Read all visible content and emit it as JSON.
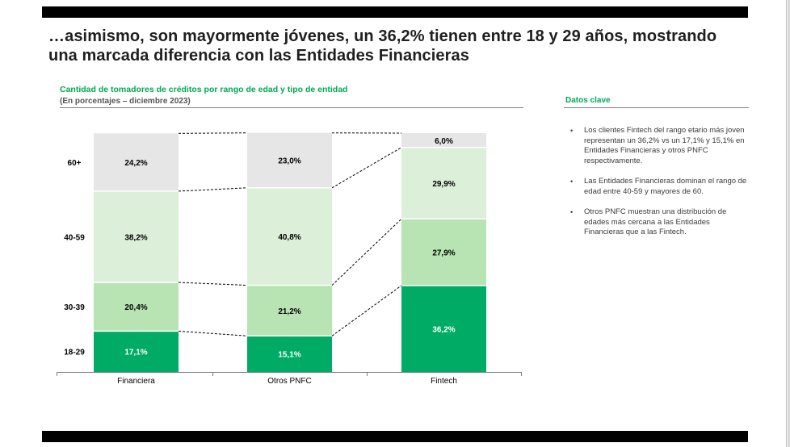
{
  "headline": "…asimismo, son mayormente jóvenes, un 36,2% tienen entre 18 y 29 años, mostrando una marcada diferencia con las Entidades Financieras",
  "colors": {
    "green_dark": "#00ab66",
    "green_mid": "#b8e4b3",
    "green_light": "#dcefd9",
    "gray": "#e6e6e6",
    "accent_text": "#00a859"
  },
  "chart_data": {
    "type": "bar",
    "stacked": true,
    "title": "Cantidad de tomadores de créditos por rango de edad y tipo de entidad",
    "subtitle": "(En porcentajes – diciembre 2023)",
    "unit": "%",
    "categories": [
      "Financiera",
      "Otros PNFC",
      "Fintech"
    ],
    "series": [
      {
        "name": "18-29",
        "values": [
          17.1,
          15.1,
          36.2
        ],
        "labels": [
          "17,1%",
          "15,1%",
          "36,2%"
        ],
        "color": "#00ab66",
        "text_color": "#ffffff"
      },
      {
        "name": "30-39",
        "values": [
          20.4,
          21.2,
          27.9
        ],
        "labels": [
          "20,4%",
          "21,2%",
          "27,9%"
        ],
        "color": "#b8e4b3",
        "text_color": "#000000"
      },
      {
        "name": "40-59",
        "values": [
          38.2,
          40.8,
          29.9
        ],
        "labels": [
          "38,2%",
          "40,8%",
          "29,9%"
        ],
        "color": "#dcefd9",
        "text_color": "#000000"
      },
      {
        "name": "60+",
        "values": [
          24.2,
          23.0,
          6.0
        ],
        "labels": [
          "24,2%",
          "23,0%",
          "6,0%"
        ],
        "color": "#e6e6e6",
        "text_color": "#000000"
      }
    ],
    "ylim": [
      0,
      100
    ],
    "connector_lines": "dashed"
  },
  "side_panel": {
    "title": "Datos clave",
    "bullet_glyph": "•",
    "bullets": [
      "Los clientes Fintech del rango etario más joven representan un 36,2% vs un 17,1% y 15,1% en Entidades Financieras y otros PNFC respectivamente.",
      "Las Entidades Financieras dominan el rango de edad entre 40-59 y mayores de 60.",
      "Otros PNFC muestran una distribución de edades más cercana a las Entidades Financieras que a las Fintech."
    ]
  }
}
